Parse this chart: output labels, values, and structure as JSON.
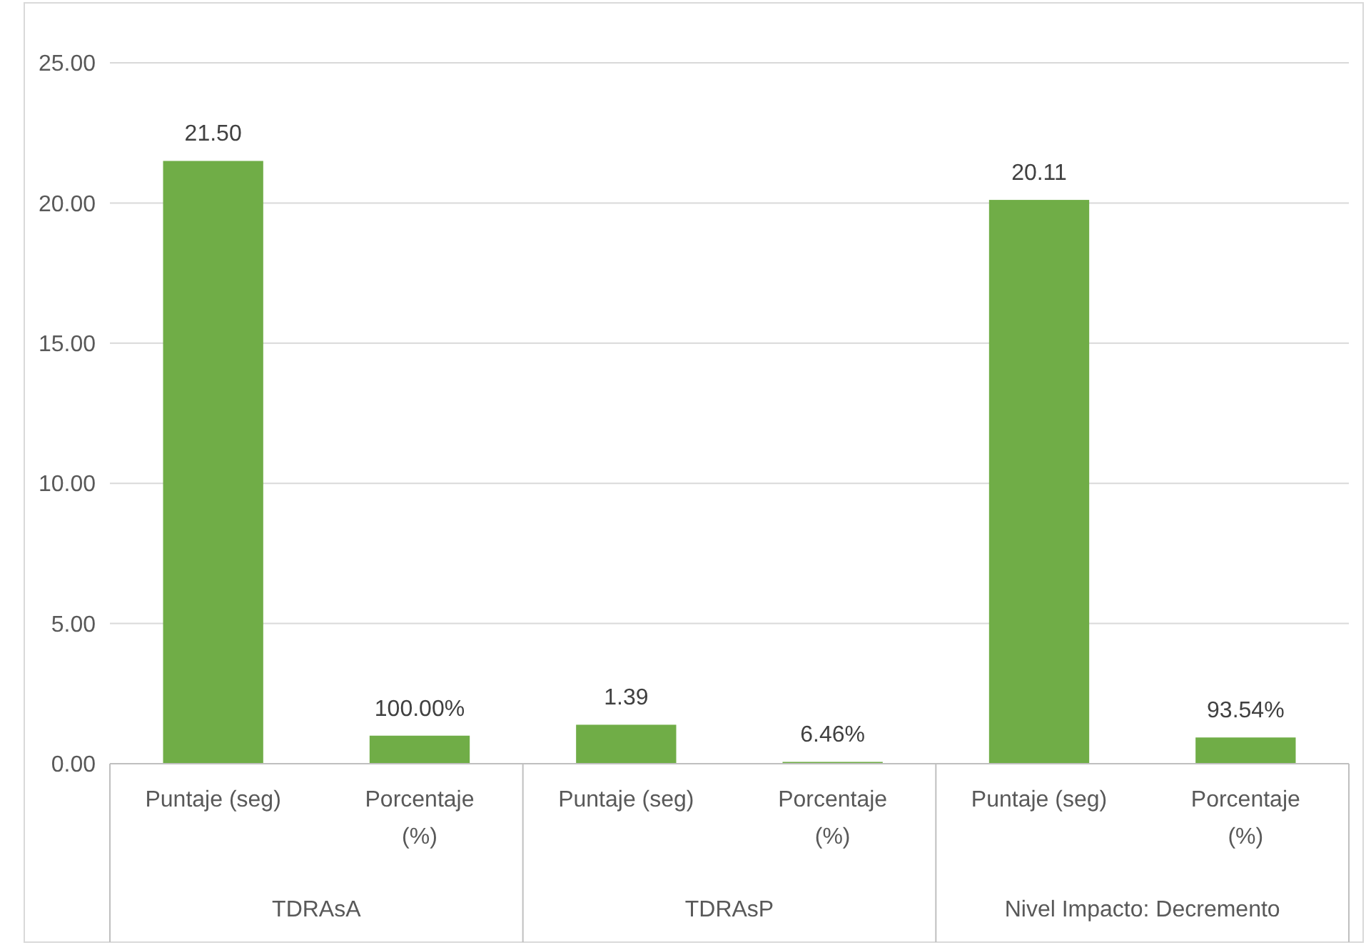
{
  "chart_data": {
    "type": "bar",
    "categories": [
      "Puntaje (seg)",
      "Porcentaje (%)",
      "Puntaje (seg)",
      "Porcentaje (%)",
      "Puntaje (seg)",
      "Porcentaje (%)"
    ],
    "values": [
      21.5,
      1.0,
      1.39,
      0.0646,
      20.11,
      0.9354
    ],
    "value_labels": [
      "21.50",
      "100.00%",
      "1.39",
      "6.46%",
      "20.11",
      "93.54%"
    ],
    "color": "#70ad47",
    "ylim": [
      0,
      25
    ],
    "yticks": [
      {
        "value": 0,
        "label": "0.00"
      },
      {
        "value": 5,
        "label": "5.00"
      },
      {
        "value": 10,
        "label": "10.00"
      },
      {
        "value": 15,
        "label": "15.00"
      },
      {
        "value": 20,
        "label": "20.00"
      },
      {
        "value": 25,
        "label": "25.00"
      }
    ],
    "grid": "y",
    "annotations": [
      "TDRAsA",
      "TDRAsP",
      "Nivel Impacto: Decremento"
    ]
  }
}
